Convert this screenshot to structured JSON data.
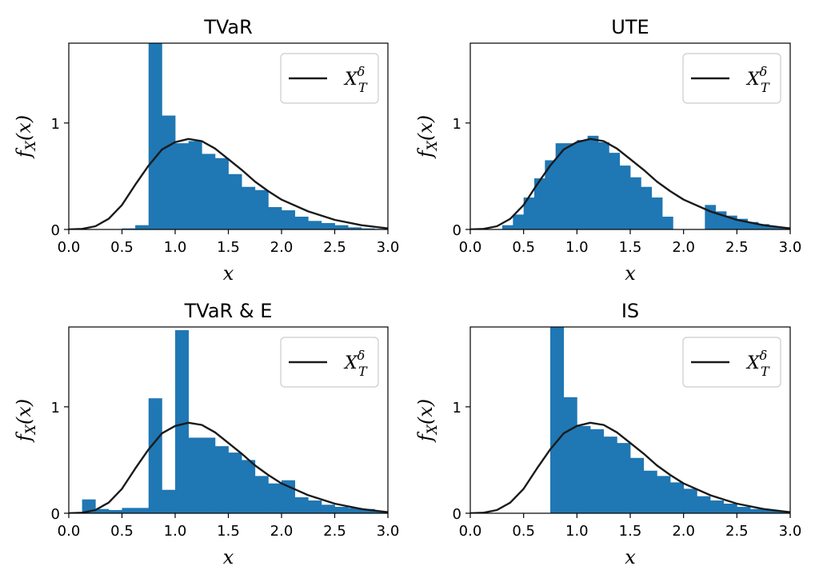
{
  "chart_data": [
    {
      "type": "bar",
      "title": "TVaR",
      "xlabel": "x",
      "ylabel": "f_X(x)",
      "xlim": [
        0,
        3
      ],
      "ylim": [
        0,
        1.75
      ],
      "xticks": [
        "0.0",
        "0.5",
        "1.0",
        "1.5",
        "2.0",
        "2.5",
        "3.0"
      ],
      "yticks": [
        "0",
        "1"
      ],
      "legend": {
        "label": "X_T^δ",
        "position": "upper right"
      },
      "hist_color": "#1f77b4",
      "bin_edges": [
        0.0,
        0.125,
        0.25,
        0.375,
        0.5,
        0.625,
        0.75,
        0.875,
        1.0,
        1.125,
        1.25,
        1.375,
        1.5,
        1.625,
        1.75,
        1.875,
        2.0,
        2.125,
        2.25,
        2.375,
        2.5,
        2.625,
        2.75,
        2.875,
        3.0
      ],
      "bin_heights": [
        0,
        0,
        0,
        0,
        0.01,
        0.04,
        1.78,
        1.07,
        0.81,
        0.83,
        0.71,
        0.67,
        0.52,
        0.4,
        0.37,
        0.21,
        0.18,
        0.12,
        0.08,
        0.06,
        0.04,
        0.02,
        0.01,
        0.005
      ],
      "curve": {
        "name": "X_T^δ",
        "x": [
          0.0,
          0.125,
          0.25,
          0.375,
          0.5,
          0.625,
          0.75,
          0.875,
          1.0,
          1.125,
          1.25,
          1.375,
          1.5,
          1.625,
          1.75,
          1.875,
          2.0,
          2.25,
          2.5,
          2.75,
          3.0
        ],
        "y": [
          0,
          0.005,
          0.03,
          0.1,
          0.23,
          0.42,
          0.6,
          0.75,
          0.82,
          0.85,
          0.83,
          0.76,
          0.66,
          0.56,
          0.45,
          0.36,
          0.28,
          0.17,
          0.09,
          0.04,
          0.01
        ]
      }
    },
    {
      "type": "bar",
      "title": "UTE",
      "xlabel": "x",
      "ylabel": "f_X(x)",
      "xlim": [
        0,
        3
      ],
      "ylim": [
        0,
        1.75
      ],
      "xticks": [
        "0.0",
        "0.5",
        "1.0",
        "1.5",
        "2.0",
        "2.5",
        "3.0"
      ],
      "yticks": [
        "0",
        "1"
      ],
      "legend": {
        "label": "X_T^δ",
        "position": "upper right"
      },
      "hist_color": "#1f77b4",
      "bin_edges": [
        0.0,
        0.1,
        0.2,
        0.3,
        0.4,
        0.5,
        0.6,
        0.7,
        0.8,
        0.9,
        1.0,
        1.1,
        1.2,
        1.3,
        1.4,
        1.5,
        1.6,
        1.7,
        1.8,
        1.9,
        2.0,
        2.1,
        2.2,
        2.3,
        2.4,
        2.5,
        2.6,
        2.7,
        2.8,
        2.9,
        3.0
      ],
      "bin_heights": [
        0,
        0,
        0,
        0.04,
        0.14,
        0.3,
        0.48,
        0.65,
        0.81,
        0.81,
        0.84,
        0.88,
        0.82,
        0.72,
        0.6,
        0.49,
        0.4,
        0.3,
        0.12,
        0,
        0,
        0,
        0.23,
        0.17,
        0.13,
        0.1,
        0.07,
        0.05,
        0.03,
        0.02
      ],
      "curve": {
        "name": "X_T^δ",
        "x": [
          0.0,
          0.125,
          0.25,
          0.375,
          0.5,
          0.625,
          0.75,
          0.875,
          1.0,
          1.125,
          1.25,
          1.375,
          1.5,
          1.625,
          1.75,
          1.875,
          2.0,
          2.25,
          2.5,
          2.75,
          3.0
        ],
        "y": [
          0,
          0.005,
          0.03,
          0.1,
          0.23,
          0.42,
          0.6,
          0.75,
          0.82,
          0.85,
          0.83,
          0.76,
          0.66,
          0.56,
          0.45,
          0.36,
          0.28,
          0.17,
          0.09,
          0.04,
          0.01
        ]
      }
    },
    {
      "type": "bar",
      "title": "TVaR & E",
      "xlabel": "x",
      "ylabel": "f_X(x)",
      "xlim": [
        0,
        3
      ],
      "ylim": [
        0,
        1.75
      ],
      "xticks": [
        "0.0",
        "0.5",
        "1.0",
        "1.5",
        "2.0",
        "2.5",
        "3.0"
      ],
      "yticks": [
        "0",
        "1"
      ],
      "legend": {
        "label": "X_T^δ",
        "position": "upper right"
      },
      "hist_color": "#1f77b4",
      "bin_edges": [
        0.0,
        0.125,
        0.25,
        0.375,
        0.5,
        0.625,
        0.75,
        0.875,
        1.0,
        1.125,
        1.25,
        1.375,
        1.5,
        1.625,
        1.75,
        1.875,
        2.0,
        2.125,
        2.25,
        2.375,
        2.5,
        2.625,
        2.75,
        2.875,
        3.0
      ],
      "bin_heights": [
        0,
        0.13,
        0.04,
        0.03,
        0.05,
        0.05,
        1.08,
        0.22,
        1.72,
        0.71,
        0.71,
        0.63,
        0.57,
        0.5,
        0.35,
        0.28,
        0.31,
        0.15,
        0.12,
        0.08,
        0.06,
        0.05,
        0.04,
        0.02
      ],
      "curve": {
        "name": "X_T^δ",
        "x": [
          0.0,
          0.125,
          0.25,
          0.375,
          0.5,
          0.625,
          0.75,
          0.875,
          1.0,
          1.125,
          1.25,
          1.375,
          1.5,
          1.625,
          1.75,
          1.875,
          2.0,
          2.25,
          2.5,
          2.75,
          3.0
        ],
        "y": [
          0,
          0.005,
          0.03,
          0.1,
          0.23,
          0.42,
          0.6,
          0.75,
          0.82,
          0.85,
          0.83,
          0.76,
          0.66,
          0.56,
          0.45,
          0.36,
          0.28,
          0.17,
          0.09,
          0.04,
          0.01
        ]
      }
    },
    {
      "type": "bar",
      "title": "IS",
      "xlabel": "x",
      "ylabel": "f_X(x)",
      "xlim": [
        0,
        3
      ],
      "ylim": [
        0,
        1.75
      ],
      "xticks": [
        "0.0",
        "0.5",
        "1.0",
        "1.5",
        "2.0",
        "2.5",
        "3.0"
      ],
      "yticks": [
        "0",
        "1"
      ],
      "legend": {
        "label": "X_T^δ",
        "position": "upper right"
      },
      "hist_color": "#1f77b4",
      "bin_edges": [
        0.0,
        0.125,
        0.25,
        0.375,
        0.5,
        0.625,
        0.75,
        0.875,
        1.0,
        1.125,
        1.25,
        1.375,
        1.5,
        1.625,
        1.75,
        1.875,
        2.0,
        2.125,
        2.25,
        2.375,
        2.5,
        2.625,
        2.75,
        2.875,
        3.0
      ],
      "bin_heights": [
        0,
        0,
        0,
        0,
        0,
        0,
        1.79,
        1.09,
        0.82,
        0.79,
        0.72,
        0.66,
        0.52,
        0.4,
        0.35,
        0.29,
        0.23,
        0.16,
        0.12,
        0.09,
        0.06,
        0.04,
        0.03,
        0.02
      ],
      "curve": {
        "name": "X_T^δ",
        "x": [
          0.0,
          0.125,
          0.25,
          0.375,
          0.5,
          0.625,
          0.75,
          0.875,
          1.0,
          1.125,
          1.25,
          1.375,
          1.5,
          1.625,
          1.75,
          1.875,
          2.0,
          2.25,
          2.5,
          2.75,
          3.0
        ],
        "y": [
          0,
          0.005,
          0.03,
          0.1,
          0.23,
          0.42,
          0.6,
          0.75,
          0.82,
          0.85,
          0.83,
          0.76,
          0.66,
          0.56,
          0.45,
          0.36,
          0.28,
          0.17,
          0.09,
          0.04,
          0.01
        ]
      }
    }
  ]
}
